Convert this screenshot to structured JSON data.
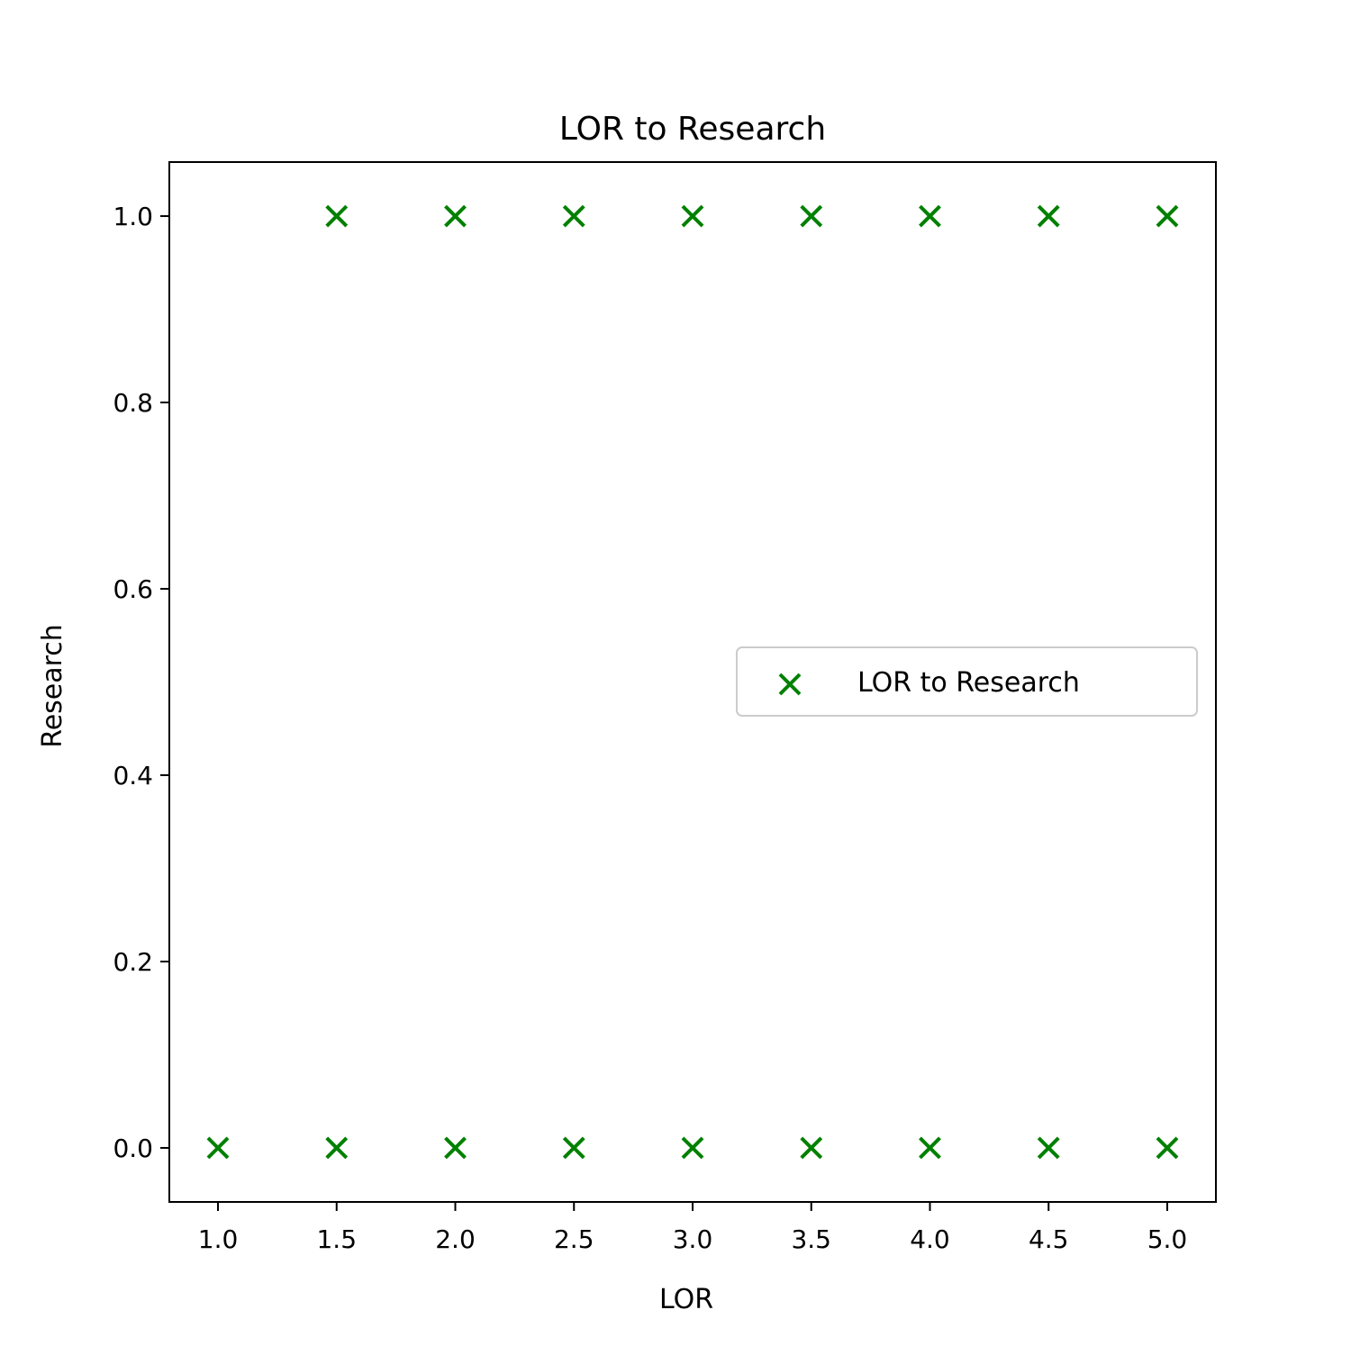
{
  "chart_data": {
    "type": "scatter",
    "title": "LOR  to Research",
    "xlabel": "LOR",
    "ylabel": "Research",
    "xlim": [
      0.795,
      5.205
    ],
    "ylim": [
      -0.058,
      1.058
    ],
    "xticks": [
      1.0,
      1.5,
      2.0,
      2.5,
      3.0,
      3.5,
      4.0,
      4.5,
      5.0
    ],
    "xtick_labels": [
      "1.0",
      "1.5",
      "2.0",
      "2.5",
      "3.0",
      "3.5",
      "4.0",
      "4.5",
      "5.0"
    ],
    "yticks": [
      0.0,
      0.2,
      0.4,
      0.6,
      0.8,
      1.0
    ],
    "ytick_labels": [
      "0.0",
      "0.2",
      "0.4",
      "0.6",
      "0.8",
      "1.0"
    ],
    "grid": false,
    "legend": {
      "placement": "center-right",
      "entries": [
        "LOR  to Research"
      ]
    },
    "series": [
      {
        "name": "LOR  to Research",
        "marker": "x",
        "color": "#008000",
        "points": [
          [
            1.0,
            0
          ],
          [
            1.5,
            0
          ],
          [
            2.0,
            0
          ],
          [
            2.5,
            0
          ],
          [
            3.0,
            0
          ],
          [
            3.5,
            0
          ],
          [
            4.0,
            0
          ],
          [
            4.5,
            0
          ],
          [
            5.0,
            0
          ],
          [
            1.5,
            1
          ],
          [
            2.0,
            1
          ],
          [
            2.5,
            1
          ],
          [
            3.0,
            1
          ],
          [
            3.5,
            1
          ],
          [
            4.0,
            1
          ],
          [
            4.5,
            1
          ],
          [
            5.0,
            1
          ]
        ]
      }
    ]
  }
}
